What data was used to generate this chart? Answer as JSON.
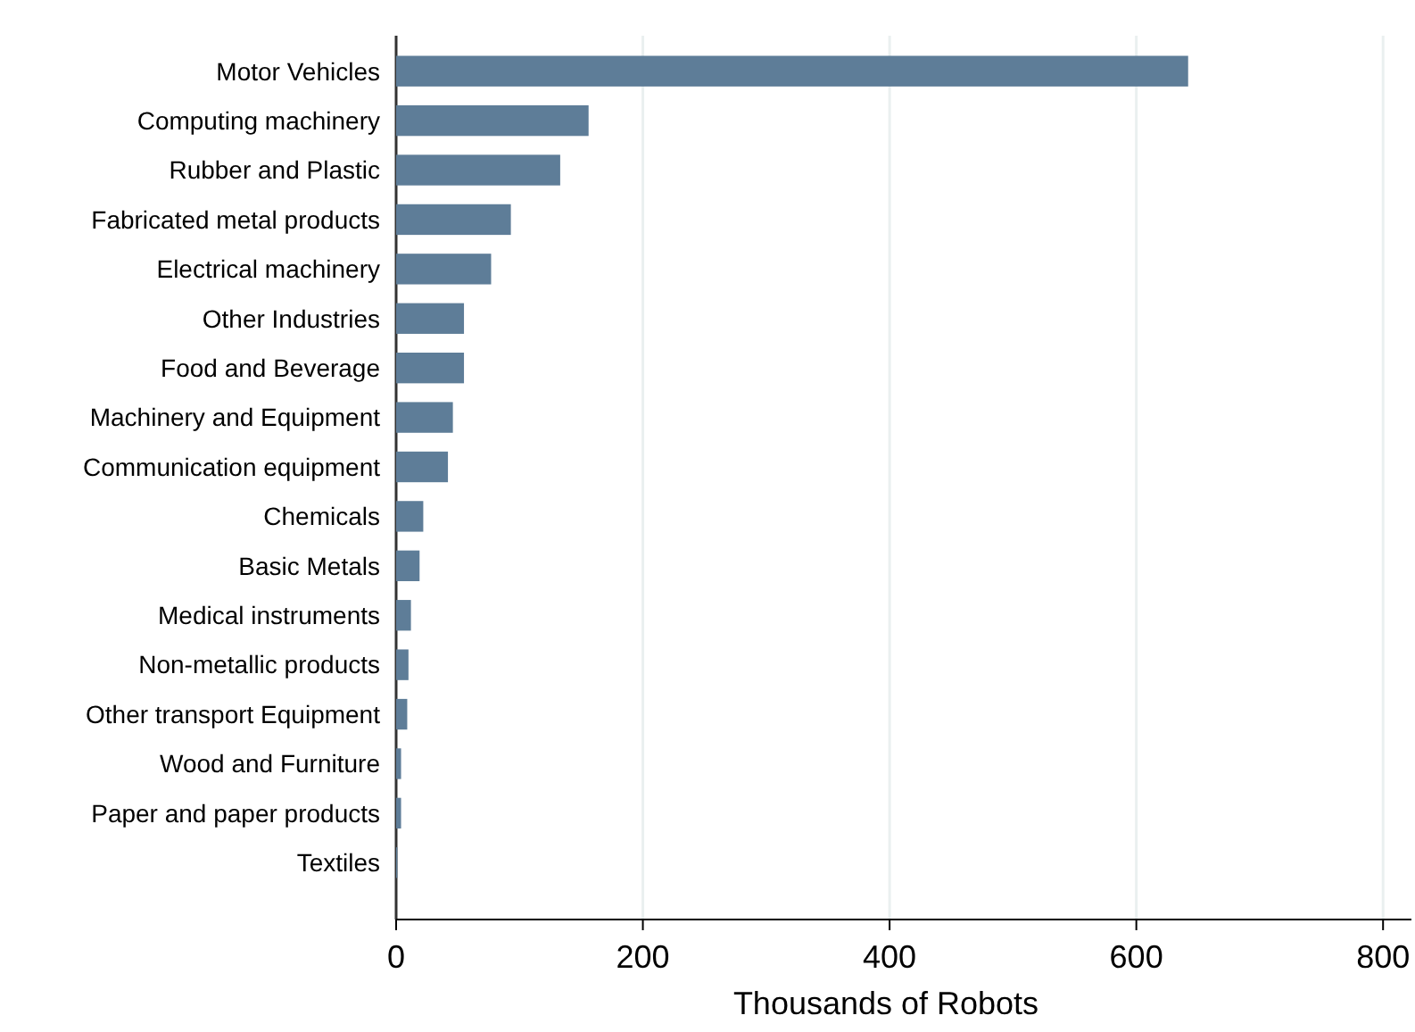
{
  "chart_data": {
    "type": "bar",
    "orientation": "horizontal",
    "xlabel": "Thousands of Robots",
    "categories": [
      "Motor Vehicles",
      "Computing machinery",
      "Rubber and Plastic",
      "Fabricated metal products",
      "Electrical machinery",
      "Other Industries",
      "Food and Beverage",
      "Machinery and Equipment",
      "Communication equipment",
      "Chemicals",
      "Basic Metals",
      "Medical instruments",
      "Non-metallic products",
      "Other transport Equipment",
      "Wood and Furniture",
      "Paper and paper products",
      "Textiles"
    ],
    "values": [
      642,
      156,
      133,
      93,
      77,
      55,
      55,
      46,
      42,
      22,
      19,
      12,
      10,
      9,
      4,
      4,
      1
    ],
    "color": "#5e7d98",
    "xlim": [
      0,
      823
    ],
    "xticks": [
      0,
      200,
      400,
      600,
      800
    ],
    "grid": "x"
  }
}
